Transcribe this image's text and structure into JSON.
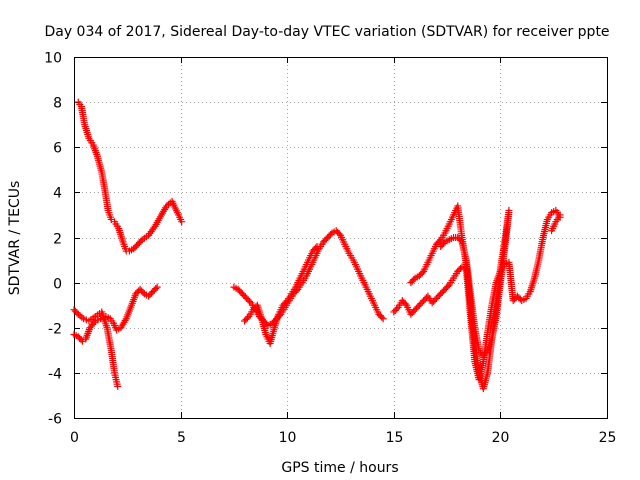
{
  "chart_data": {
    "type": "scatter",
    "title": "Day 034 of 2017, Sidereal Day-to-day VTEC variation (SDTVAR) for receiver ppte",
    "xlabel": "GPS time / hours",
    "ylabel": "SDTVAR / TECUs",
    "xlim": [
      0,
      25
    ],
    "ylim": [
      -6,
      10
    ],
    "xticks": [
      0,
      5,
      10,
      15,
      20,
      25
    ],
    "yticks": [
      -6,
      -4,
      -2,
      0,
      2,
      4,
      6,
      8,
      10
    ],
    "xtick_labels": [
      "0",
      "5",
      "10",
      "15",
      "20",
      "25"
    ],
    "ytick_labels": [
      "-6",
      "-4",
      "-2",
      "0",
      "2",
      "4",
      "6",
      "8",
      "10"
    ],
    "grid": true,
    "marker": "plus",
    "color": "#ff0000",
    "series": [
      {
        "x": [
          0.2,
          0.35,
          0.5,
          0.7,
          0.9,
          1.1,
          1.3,
          1.45,
          1.6,
          1.75,
          1.9,
          2.1,
          2.3,
          2.45,
          2.6,
          2.8,
          3.0,
          3.2,
          3.5,
          3.8,
          4.1,
          4.35,
          4.6,
          4.85,
          5.05
        ],
        "y": [
          8.0,
          7.8,
          7.0,
          6.4,
          6.1,
          5.6,
          4.9,
          4.1,
          3.2,
          2.8,
          2.7,
          2.4,
          1.8,
          1.4,
          1.4,
          1.5,
          1.7,
          1.9,
          2.1,
          2.5,
          3.0,
          3.4,
          3.6,
          3.1,
          2.7
        ]
      },
      {
        "x": [
          0.0,
          0.2,
          0.45,
          0.7,
          1.0,
          1.3,
          1.55,
          1.75,
          1.9,
          2.05
        ],
        "y": [
          -1.2,
          -1.4,
          -1.6,
          -1.7,
          -1.5,
          -1.3,
          -2.0,
          -3.0,
          -4.0,
          -4.6
        ]
      },
      {
        "x": [
          0.0,
          0.2,
          0.4,
          0.55,
          0.75,
          1.0,
          1.25,
          1.5,
          1.7,
          1.85,
          2.0,
          2.2,
          2.45,
          2.7,
          2.9,
          3.1,
          3.3,
          3.5,
          3.7,
          3.9
        ],
        "y": [
          -2.3,
          -2.4,
          -2.6,
          -2.5,
          -2.0,
          -1.7,
          -1.6,
          -1.5,
          -1.6,
          -1.8,
          -2.1,
          -2.0,
          -1.6,
          -1.0,
          -0.5,
          -0.3,
          -0.5,
          -0.6,
          -0.4,
          -0.2
        ]
      },
      {
        "x": [
          7.5,
          7.7,
          7.9,
          8.1,
          8.3,
          8.5,
          8.7,
          8.9,
          9.1,
          9.3,
          9.5,
          9.7,
          9.9,
          10.1,
          10.3,
          10.5,
          10.7,
          10.9,
          11.1,
          11.3,
          11.5,
          11.7,
          11.9,
          12.1,
          12.3,
          12.5,
          12.7,
          12.9,
          13.1,
          13.3,
          13.5,
          13.7,
          13.9,
          14.1,
          14.3,
          14.5
        ],
        "y": [
          -0.2,
          -0.3,
          -0.5,
          -0.7,
          -0.9,
          -1.2,
          -1.5,
          -1.7,
          -1.9,
          -1.8,
          -1.6,
          -1.4,
          -1.1,
          -0.8,
          -0.5,
          -0.3,
          0.0,
          0.3,
          0.7,
          1.1,
          1.5,
          1.8,
          2.0,
          2.2,
          2.3,
          2.1,
          1.7,
          1.3,
          1.0,
          0.6,
          0.2,
          -0.2,
          -0.6,
          -1.0,
          -1.4,
          -1.6
        ]
      },
      {
        "x": [
          8.0,
          8.2,
          8.4,
          8.6,
          8.8,
          9.0,
          9.2,
          9.4,
          9.6,
          9.8,
          10.0,
          10.2,
          10.4,
          10.6,
          10.8,
          11.0,
          11.2,
          11.4
        ],
        "y": [
          -1.7,
          -1.5,
          -1.2,
          -1.0,
          -1.6,
          -2.3,
          -2.7,
          -2.0,
          -1.4,
          -1.0,
          -0.8,
          -0.5,
          -0.2,
          0.2,
          0.6,
          1.0,
          1.4,
          1.6
        ]
      },
      {
        "x": [
          15.0,
          15.2,
          15.4,
          15.6,
          15.8,
          16.0,
          16.2,
          16.4,
          16.6,
          16.8,
          17.0,
          17.2,
          17.4,
          17.6,
          17.8,
          18.0,
          18.2,
          18.4,
          18.6,
          18.8,
          19.0,
          19.2,
          19.4,
          19.6,
          19.8,
          20.0,
          20.2,
          20.4,
          20.6,
          20.8,
          21.0,
          21.2,
          21.4,
          21.6,
          21.8,
          22.0,
          22.2,
          22.4,
          22.6,
          22.8
        ],
        "y": [
          -1.3,
          -1.1,
          -0.8,
          -1.0,
          -1.4,
          -1.2,
          -1.0,
          -0.8,
          -0.6,
          -0.9,
          -0.7,
          -0.5,
          -0.3,
          -0.1,
          0.2,
          0.5,
          0.7,
          0.6,
          -1.5,
          -3.5,
          -4.3,
          -3.5,
          -2.2,
          -1.0,
          0.0,
          0.5,
          0.8,
          0.9,
          -0.8,
          -0.6,
          -0.8,
          -0.7,
          -0.4,
          0.2,
          1.0,
          2.0,
          2.8,
          3.1,
          3.2,
          2.9
        ]
      },
      {
        "x": [
          15.8,
          16.0,
          16.2,
          16.4,
          16.6,
          16.8,
          17.0,
          17.2,
          17.4,
          17.6,
          17.8,
          18.0,
          18.2,
          18.4,
          18.6,
          18.8,
          19.0,
          19.2,
          19.4,
          19.6,
          19.8,
          20.0,
          20.2,
          20.4
        ],
        "y": [
          0.0,
          0.2,
          0.3,
          0.5,
          0.9,
          1.3,
          1.7,
          1.9,
          2.2,
          2.6,
          3.0,
          3.4,
          2.0,
          0.8,
          -1.0,
          -2.8,
          -4.0,
          -4.7,
          -4.0,
          -2.5,
          -1.0,
          0.6,
          1.8,
          3.2
        ]
      },
      {
        "x": [
          17.2,
          17.4,
          17.6,
          17.8,
          18.0,
          18.2,
          18.4,
          18.6,
          18.8,
          19.0,
          19.2,
          19.4,
          19.6,
          19.8,
          20.0,
          20.2,
          20.4
        ],
        "y": [
          1.6,
          1.8,
          1.9,
          2.0,
          2.0,
          1.8,
          1.0,
          -0.5,
          -2.0,
          -3.0,
          -3.3,
          -3.0,
          -2.5,
          -1.5,
          0.0,
          1.5,
          3.1
        ]
      },
      {
        "x": [
          22.4,
          22.6,
          22.8
        ],
        "y": [
          2.3,
          2.7,
          3.0
        ]
      }
    ]
  }
}
